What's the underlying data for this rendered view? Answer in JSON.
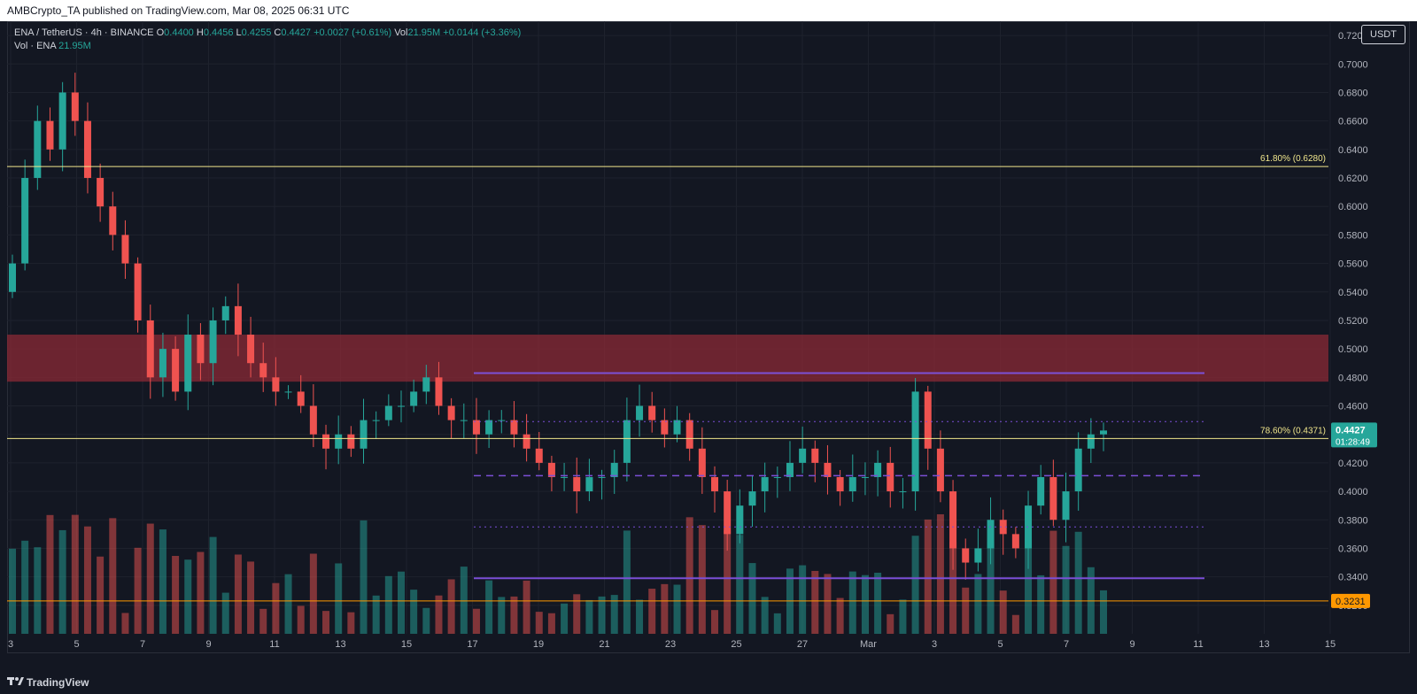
{
  "header": {
    "publisher": "AMBCrypto_TA published on TradingView.com, Mar 08, 2025 06:31 UTC"
  },
  "legend": {
    "symbol": "ENA / TetherUS · 4h · BINANCE",
    "o_label": "O",
    "o": "0.4400",
    "h_label": "H",
    "h": "0.4456",
    "l_label": "L",
    "l": "0.4255",
    "c_label": "C",
    "c": "0.4427",
    "change": "+0.0027 (+0.61%)",
    "vol_inline": "Vol",
    "vol_inline_value": "21.95M",
    "vol_inline_change": "+0.0144 (+3.36%)",
    "vol_row_label": "Vol · ENA",
    "vol_row_value": "21.95M"
  },
  "currency": "USDT",
  "footer": {
    "brand": "TradingView"
  },
  "colors": {
    "up": "#26a69a",
    "down": "#ef5350",
    "fib": "#f0e68c",
    "support": "#ff9800",
    "channel": "#7b4fd6",
    "zone": "#8b2a35"
  },
  "chart_data": {
    "type": "candlestick",
    "title": "",
    "y_axis": {
      "range": [
        0.3,
        0.73
      ],
      "ticks": [
        "0.7200",
        "0.7000",
        "0.6800",
        "0.6600",
        "0.6400",
        "0.6200",
        "0.6000",
        "0.5800",
        "0.5600",
        "0.5400",
        "0.5200",
        "0.5000",
        "0.4800",
        "0.4600",
        "0.4400",
        "0.4200",
        "0.4000",
        "0.3800",
        "0.3600",
        "0.3400",
        "0.3200"
      ]
    },
    "x_axis": {
      "ticks": [
        "3",
        "5",
        "7",
        "9",
        "11",
        "13",
        "15",
        "17",
        "19",
        "21",
        "23",
        "25",
        "27",
        "Mar",
        "3",
        "5",
        "7",
        "9",
        "11",
        "13",
        "15"
      ]
    },
    "last_price": "0.4427",
    "countdown": "01:28:49",
    "support_price": "0.3231",
    "support_level": 0.3231,
    "fib_levels": [
      {
        "label": "61.80% (0.6280)",
        "value": 0.628
      },
      {
        "label": "78.60% (0.4371)",
        "value": 0.4371
      }
    ],
    "supply_zone": [
      0.477,
      0.51
    ],
    "channel": {
      "top": 0.483,
      "bottom": 0.339,
      "mid_upper": 0.449,
      "mid": 0.411,
      "mid_lower": 0.375
    },
    "candles_close": [
      0.56,
      0.62,
      0.66,
      0.64,
      0.68,
      0.66,
      0.62,
      0.6,
      0.58,
      0.56,
      0.52,
      0.48,
      0.5,
      0.47,
      0.51,
      0.49,
      0.52,
      0.53,
      0.51,
      0.49,
      0.48,
      0.47,
      0.47,
      0.46,
      0.44,
      0.43,
      0.44,
      0.43,
      0.45,
      0.45,
      0.46,
      0.46,
      0.47,
      0.48,
      0.46,
      0.45,
      0.45,
      0.44,
      0.45,
      0.45,
      0.44,
      0.43,
      0.42,
      0.41,
      0.41,
      0.4,
      0.41,
      0.41,
      0.42,
      0.45,
      0.46,
      0.45,
      0.44,
      0.45,
      0.43,
      0.41,
      0.4,
      0.37,
      0.39,
      0.4,
      0.41,
      0.41,
      0.42,
      0.43,
      0.42,
      0.41,
      0.4,
      0.41,
      0.41,
      0.42,
      0.4,
      0.4,
      0.47,
      0.43,
      0.4,
      0.36,
      0.35,
      0.36,
      0.38,
      0.37,
      0.36,
      0.39,
      0.41,
      0.38,
      0.4,
      0.43,
      0.44,
      0.4427
    ],
    "volume_note": "Vol · ENA 21.95M"
  }
}
